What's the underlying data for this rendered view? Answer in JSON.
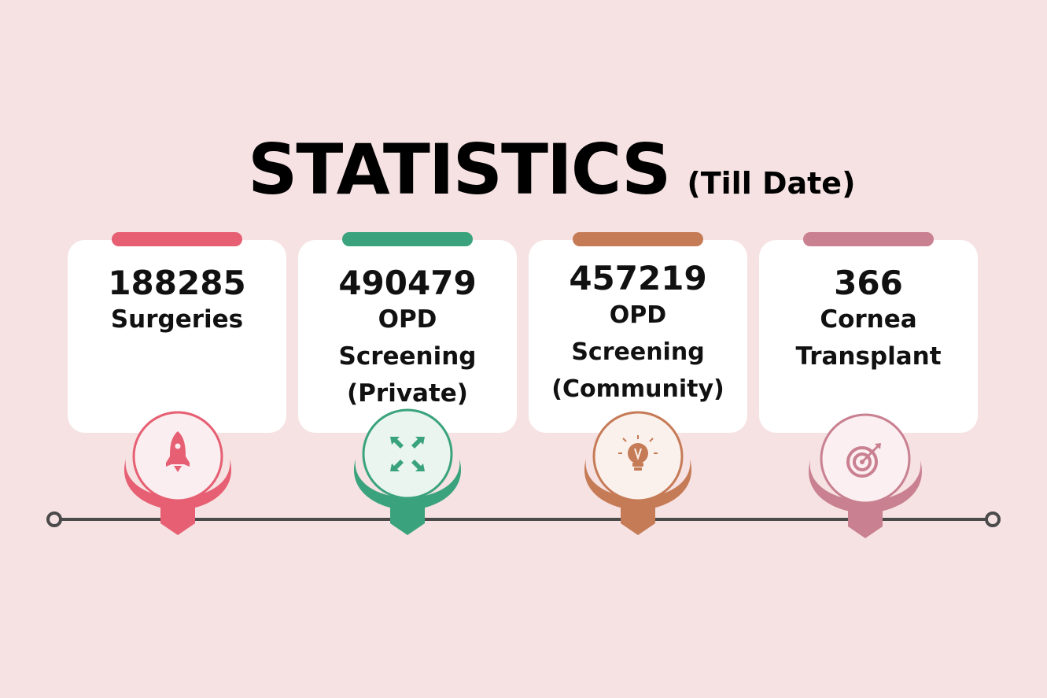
{
  "header": {
    "title": "STATISTICS",
    "subtitle": "(Till Date)"
  },
  "stats": [
    {
      "value": "188285",
      "label_lines": [
        "Surgeries"
      ],
      "accent": "#e65f72",
      "icon": "rocket-icon"
    },
    {
      "value": "490479",
      "label_lines": [
        "OPD",
        "Screening",
        "(Private)"
      ],
      "accent": "#3aa37d",
      "icon": "expand-arrows-icon"
    },
    {
      "value": "457219",
      "label_lines": [
        "OPD",
        "Screening",
        "(Community)"
      ],
      "accent": "#c67b57",
      "icon": "lightbulb-icon"
    },
    {
      "value": "366",
      "label_lines": [
        "Cornea",
        "Transplant"
      ],
      "accent": "#c98090",
      "icon": "target-icon"
    }
  ],
  "timeline": {
    "line_color": "#4a4a4a"
  }
}
